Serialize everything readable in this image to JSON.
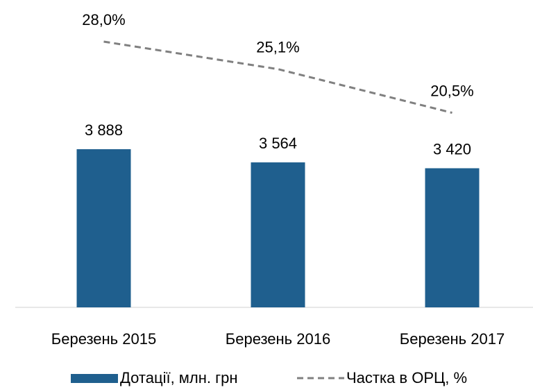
{
  "chart_data": {
    "type": "bar",
    "categories": [
      "Березень 2015",
      "Березень 2016",
      "Березень 2017"
    ],
    "series": [
      {
        "name": "Дотації, млн. грн",
        "type": "bar",
        "color": "#1f5f8e",
        "values": [
          3888,
          3564,
          3420
        ],
        "value_labels": [
          "3 888",
          "3 564",
          "3 420"
        ]
      },
      {
        "name": "Частка в ОРЦ, %",
        "type": "line",
        "axis": "y2",
        "color": "#808080",
        "dashed": true,
        "values": [
          28.0,
          25.1,
          20.5
        ],
        "value_labels": [
          "28,0%",
          "25,1%",
          "20,5%"
        ]
      }
    ],
    "ylim": [
      0,
      7000
    ],
    "y2lim": [
      0,
      30
    ],
    "grid": false,
    "legend": "bottom"
  }
}
